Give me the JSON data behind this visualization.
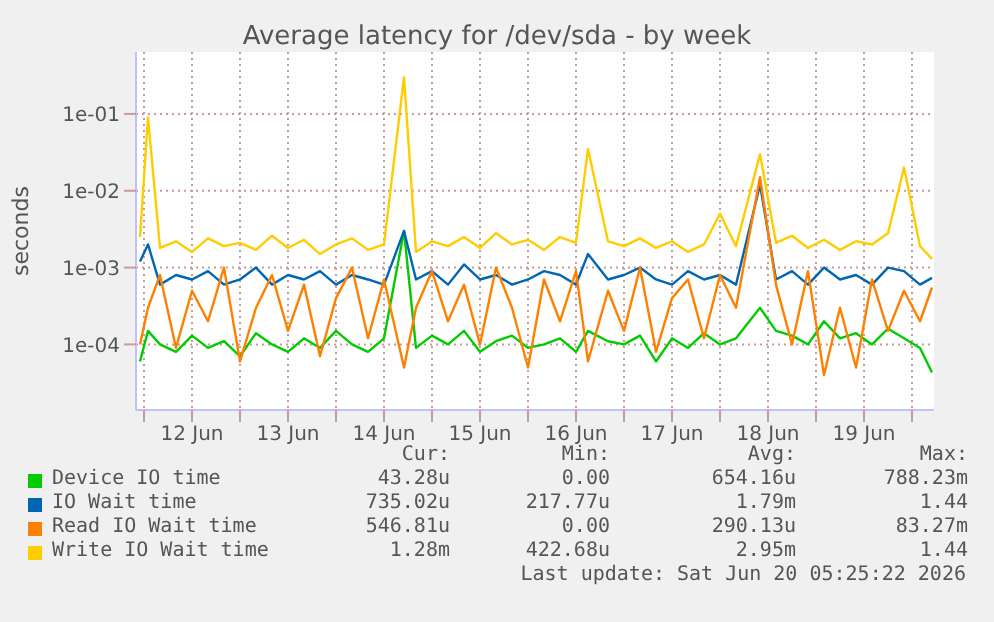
{
  "chart_data": {
    "type": "line",
    "title": "Average latency for /dev/sda - by week",
    "ylabel": "seconds",
    "x": [
      "2026-06-11T23:00",
      "2026-06-12T01:00",
      "2026-06-12T04:00",
      "2026-06-12T08:00",
      "2026-06-12T12:00",
      "2026-06-12T16:00",
      "2026-06-12T20:00",
      "2026-06-13T00:00",
      "2026-06-13T04:00",
      "2026-06-13T08:00",
      "2026-06-13T12:00",
      "2026-06-13T16:00",
      "2026-06-13T20:00",
      "2026-06-14T00:00",
      "2026-06-14T04:00",
      "2026-06-14T08:00",
      "2026-06-14T12:00",
      "2026-06-14T17:00",
      "2026-06-14T20:00",
      "2026-06-15T00:00",
      "2026-06-15T04:00",
      "2026-06-15T08:00",
      "2026-06-15T12:00",
      "2026-06-15T16:00",
      "2026-06-15T20:00",
      "2026-06-16T00:00",
      "2026-06-16T04:00",
      "2026-06-16T08:00",
      "2026-06-16T12:00",
      "2026-06-16T15:00",
      "2026-06-16T20:00",
      "2026-06-17T00:00",
      "2026-06-17T04:00",
      "2026-06-17T08:00",
      "2026-06-17T12:00",
      "2026-06-17T16:00",
      "2026-06-17T20:00",
      "2026-06-18T00:00",
      "2026-06-18T04:00",
      "2026-06-18T10:00",
      "2026-06-18T14:00",
      "2026-06-18T18:00",
      "2026-06-18T22:00",
      "2026-06-19T02:00",
      "2026-06-19T06:00",
      "2026-06-19T10:00",
      "2026-06-19T14:00",
      "2026-06-19T18:00",
      "2026-06-19T22:00",
      "2026-06-20T02:00",
      "2026-06-20T05:00"
    ],
    "series": [
      {
        "name": "Device IO time",
        "color": "#00cc00",
        "values": [
          6e-05,
          0.00015,
          0.0001,
          8e-05,
          0.00013,
          9e-05,
          0.00011,
          7e-05,
          0.00014,
          0.0001,
          8e-05,
          0.00012,
          9e-05,
          0.00015,
          0.0001,
          8e-05,
          0.00012,
          0.003,
          9e-05,
          0.00013,
          0.0001,
          0.00015,
          8e-05,
          0.00011,
          0.00013,
          9e-05,
          0.0001,
          0.00012,
          8e-05,
          0.00015,
          0.00011,
          0.0001,
          0.00013,
          6e-05,
          0.00012,
          9e-05,
          0.00014,
          0.0001,
          0.00012,
          0.0003,
          0.00015,
          0.00013,
          0.0001,
          0.0002,
          0.00012,
          0.00014,
          0.0001,
          0.00016,
          0.00012,
          9e-05,
          4.3e-05
        ]
      },
      {
        "name": "IO Wait time",
        "color": "#0066b3",
        "values": [
          0.0012,
          0.002,
          0.0006,
          0.0008,
          0.0007,
          0.0009,
          0.0006,
          0.0007,
          0.001,
          0.0006,
          0.0008,
          0.0007,
          0.0009,
          0.0006,
          0.0008,
          0.0007,
          0.0006,
          0.003,
          0.0007,
          0.0009,
          0.0006,
          0.0011,
          0.0007,
          0.0008,
          0.0006,
          0.0007,
          0.0009,
          0.0008,
          0.0006,
          0.0015,
          0.0007,
          0.0008,
          0.001,
          0.0007,
          0.0006,
          0.0009,
          0.0007,
          0.0008,
          0.0006,
          0.012,
          0.0007,
          0.0009,
          0.0006,
          0.001,
          0.0007,
          0.0008,
          0.0006,
          0.001,
          0.0009,
          0.0006,
          0.000735
        ]
      },
      {
        "name": "Read IO Wait time",
        "color": "#ff8000",
        "values": [
          0.0001,
          0.0003,
          0.0008,
          9e-05,
          0.0005,
          0.0002,
          0.001,
          6e-05,
          0.0003,
          0.0008,
          0.00015,
          0.0006,
          7e-05,
          0.0004,
          0.001,
          0.00012,
          0.0007,
          5e-05,
          0.0003,
          0.0009,
          0.0002,
          0.0006,
          0.0001,
          0.001,
          0.0003,
          5e-05,
          0.0007,
          0.0002,
          0.0009,
          6e-05,
          0.0005,
          0.00015,
          0.001,
          8e-05,
          0.0004,
          0.0007,
          0.00012,
          0.0008,
          0.0003,
          0.015,
          0.0006,
          0.0001,
          0.0009,
          4e-05,
          0.0003,
          5e-05,
          0.0007,
          0.00015,
          0.0005,
          0.0002,
          0.00055
        ]
      },
      {
        "name": "Write IO Wait time",
        "color": "#ffcc00",
        "values": [
          0.0025,
          0.09,
          0.0018,
          0.0022,
          0.0016,
          0.0024,
          0.0019,
          0.0021,
          0.0017,
          0.0026,
          0.0018,
          0.0023,
          0.0015,
          0.002,
          0.0024,
          0.0017,
          0.002,
          0.3,
          0.0016,
          0.0022,
          0.0019,
          0.0025,
          0.0018,
          0.0028,
          0.002,
          0.0023,
          0.0017,
          0.0025,
          0.0021,
          0.035,
          0.0022,
          0.0019,
          0.0024,
          0.0018,
          0.0022,
          0.0016,
          0.002,
          0.005,
          0.0019,
          0.03,
          0.0021,
          0.0026,
          0.0018,
          0.0023,
          0.0017,
          0.0022,
          0.002,
          0.0028,
          0.02,
          0.0019,
          0.0013
        ]
      }
    ],
    "log": true,
    "ylim": [
      1.4e-05,
      0.64
    ],
    "yticks": [
      {
        "value": 0.0001,
        "label": "1e-04"
      },
      {
        "value": 0.001,
        "label": "1e-03"
      },
      {
        "value": 0.01,
        "label": "1e-02"
      },
      {
        "value": 0.1,
        "label": "1e-01"
      }
    ],
    "xlim": [
      "2026-06-11T22:00",
      "2026-06-20T05:30"
    ],
    "xticks": [
      {
        "value": "2026-06-12T00:00",
        "label": null
      },
      {
        "value": "2026-06-12T12:00",
        "label": "12 Jun"
      },
      {
        "value": "2026-06-13T00:00",
        "label": null
      },
      {
        "value": "2026-06-13T12:00",
        "label": "13 Jun"
      },
      {
        "value": "2026-06-14T00:00",
        "label": null
      },
      {
        "value": "2026-06-14T12:00",
        "label": "14 Jun"
      },
      {
        "value": "2026-06-15T00:00",
        "label": null
      },
      {
        "value": "2026-06-15T12:00",
        "label": "15 Jun"
      },
      {
        "value": "2026-06-16T00:00",
        "label": null
      },
      {
        "value": "2026-06-16T12:00",
        "label": "16 Jun"
      },
      {
        "value": "2026-06-17T00:00",
        "label": null
      },
      {
        "value": "2026-06-17T12:00",
        "label": "17 Jun"
      },
      {
        "value": "2026-06-18T00:00",
        "label": null
      },
      {
        "value": "2026-06-18T12:00",
        "label": "18 Jun"
      },
      {
        "value": "2026-06-19T00:00",
        "label": null
      },
      {
        "value": "2026-06-19T12:00",
        "label": "19 Jun"
      },
      {
        "value": "2026-06-20T00:00",
        "label": null
      }
    ],
    "grid": true,
    "legend": "bottom",
    "annotations": [
      "Cur:",
      "Min:",
      "Avg:",
      "Max:",
      "43.28u",
      "0.00",
      "654.16u",
      "788.23m",
      "735.02u",
      "217.77u",
      "1.79m",
      "1.44",
      "546.81u",
      "0.00",
      "290.13u",
      "83.27m",
      "1.28m",
      "422.68u",
      "2.95m",
      "1.44",
      "Last update: Sat Jun 20 05:25:22 2026"
    ]
  }
}
